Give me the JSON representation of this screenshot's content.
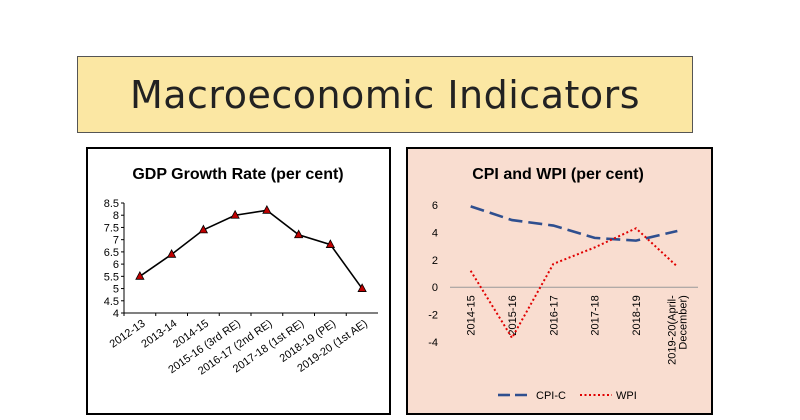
{
  "slide": {
    "title": "Macroeconomic Indicators"
  },
  "chart_data": [
    {
      "type": "line",
      "title": "GDP Growth Rate (per cent)",
      "xlabel": "",
      "ylabel": "",
      "categories": [
        "2012-13",
        "2013-14",
        "2014-15",
        "2015-16 (3rd RE)",
        "2016-17 (2nd RE)",
        "2017-18 (1st RE)",
        "2018-19 (PE)",
        "2019-20 (1st AE)"
      ],
      "series": [
        {
          "name": "GDP Growth",
          "values": [
            5.5,
            6.4,
            7.4,
            8.0,
            8.2,
            7.2,
            6.8,
            5.0
          ],
          "color": "#000000",
          "marker_color": "#c00000"
        }
      ],
      "ylim": [
        4,
        8.5
      ],
      "yticks": [
        "4",
        "4.5",
        "5",
        "5.5",
        "6",
        "6.5",
        "7",
        "7.5",
        "8",
        "8.5"
      ],
      "grid": false,
      "legend": "none"
    },
    {
      "type": "line",
      "title": "CPI and WPI (per cent)",
      "xlabel": "",
      "ylabel": "",
      "categories": [
        "2014-15",
        "2015-16",
        "2016-17",
        "2017-18",
        "2018-19",
        "2019-20(April-December)"
      ],
      "category_lines": [
        [
          "2014-15"
        ],
        [
          "2015-16"
        ],
        [
          "2016-17"
        ],
        [
          "2017-18"
        ],
        [
          "2018-19"
        ],
        [
          "2019-20(April-",
          "December)"
        ]
      ],
      "series": [
        {
          "name": "CPI-C",
          "values": [
            5.9,
            4.9,
            4.5,
            3.6,
            3.4,
            4.1
          ],
          "color": "#2f4f8f",
          "style": "dashed"
        },
        {
          "name": "WPI",
          "values": [
            1.2,
            -3.7,
            1.7,
            2.9,
            4.3,
            1.5
          ],
          "color": "#e00000",
          "style": "dotted"
        }
      ],
      "ylim": [
        -4,
        6
      ],
      "yticks": [
        "-4",
        "-2",
        "0",
        "2",
        "4",
        "6"
      ],
      "grid": false,
      "legend": "bottom"
    }
  ]
}
